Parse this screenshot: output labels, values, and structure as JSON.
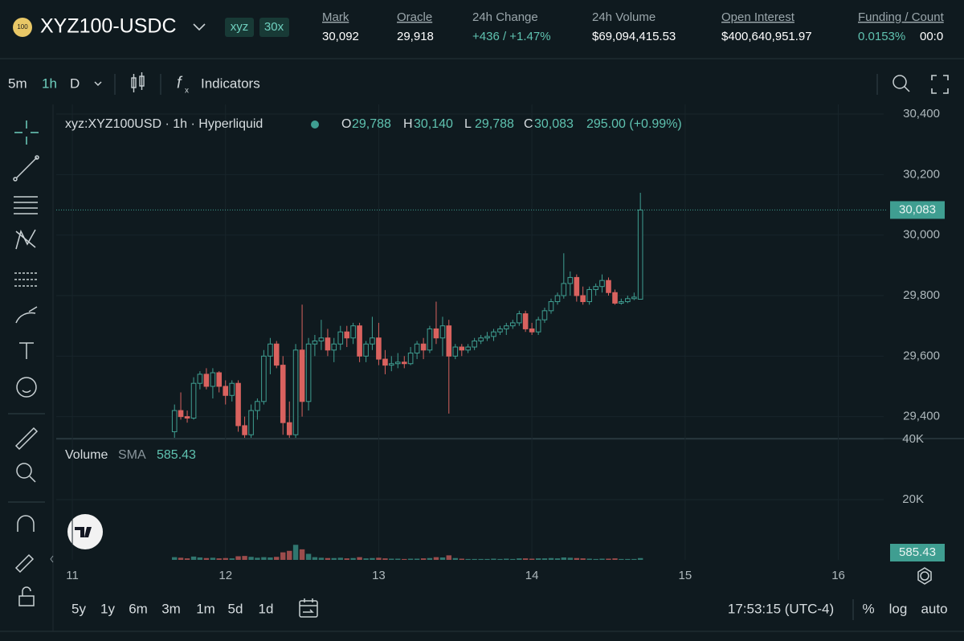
{
  "header": {
    "coin_icon": "100",
    "symbol": "XYZ100-USDC",
    "badges": [
      "xyz",
      "30x"
    ],
    "stats": [
      {
        "label": "Mark",
        "value": "30,092"
      },
      {
        "label": "Oracle",
        "value": "29,918"
      },
      {
        "label": "24h Change",
        "value": "+436 / +1.47%"
      },
      {
        "label": "24h Volume",
        "value": "$69,094,415.53"
      },
      {
        "label": "Open Interest",
        "value": "$400,640,951.97"
      },
      {
        "label": "Funding / Count",
        "value": "0.0153%",
        "extra": "00:0"
      }
    ]
  },
  "toolbar": {
    "intervals": [
      "5m",
      "1h",
      "D"
    ],
    "indicators": "Indicators"
  },
  "chart_data": {
    "type": "candlestick",
    "symbol_label": "xyz:XYZ100USD · 1h · Hyperliquid",
    "legend": [
      {
        "key": "O",
        "value": "29,788"
      },
      {
        "key": "H",
        "value": "30,140"
      },
      {
        "key": "L",
        "value": "29,788"
      },
      {
        "key": "C",
        "value": "30,083"
      }
    ],
    "change": "295.00 (+0.99%)",
    "up_color": "#3f9e91",
    "down_color": "#d9625f",
    "x": [
      11.667,
      11.708,
      11.75,
      11.792,
      11.833,
      11.875,
      11.917,
      11.958,
      12,
      12.042,
      12.083,
      12.125,
      12.167,
      12.208,
      12.25,
      12.292,
      12.333,
      12.375,
      12.417,
      12.458,
      12.5,
      12.542,
      12.583,
      12.625,
      12.667,
      12.708,
      12.75,
      12.792,
      12.833,
      12.875,
      12.917,
      12.958,
      13,
      13.042,
      13.083,
      13.125,
      13.167,
      13.208,
      13.25,
      13.292,
      13.333,
      13.375,
      13.417,
      13.458,
      13.5,
      13.542,
      13.583,
      13.625,
      13.667,
      13.708,
      13.75,
      13.792,
      13.833,
      13.875,
      13.917,
      13.958,
      14,
      14.042,
      14.083,
      14.125,
      14.167,
      14.208,
      14.25,
      14.292,
      14.333,
      14.375,
      14.417,
      14.458,
      14.5,
      14.542,
      14.583,
      14.625,
      14.667,
      14.708
    ],
    "open": [
      29350,
      29420,
      29400,
      29395,
      29510,
      29540,
      29500,
      29545,
      29500,
      29470,
      29510,
      29370,
      29340,
      29420,
      29450,
      29600,
      29640,
      29570,
      29380,
      29340,
      29620,
      29450,
      29640,
      29650,
      29660,
      29620,
      29640,
      29680,
      29660,
      29700,
      29600,
      29640,
      29660,
      29590,
      29570,
      29575,
      29580,
      29575,
      29610,
      29640,
      29620,
      29690,
      29660,
      29700,
      29600,
      29630,
      29620,
      29630,
      29650,
      29660,
      29665,
      29680,
      29690,
      29700,
      29710,
      29740,
      29690,
      29680,
      29720,
      29750,
      29780,
      29800,
      29840,
      29860,
      29800,
      29780,
      29820,
      29830,
      29850,
      29810,
      29775,
      29780,
      29790,
      29788
    ],
    "high": [
      29440,
      29480,
      29420,
      29530,
      29550,
      29560,
      29560,
      29550,
      29520,
      29520,
      29520,
      29400,
      29440,
      29460,
      29620,
      29660,
      29650,
      29600,
      29450,
      29640,
      29770,
      29660,
      29670,
      29720,
      29690,
      29660,
      29700,
      29700,
      29710,
      29710,
      29650,
      29730,
      29710,
      29620,
      29600,
      29610,
      29600,
      29630,
      29650,
      29660,
      29700,
      29780,
      29730,
      29720,
      29640,
      29640,
      29640,
      29660,
      29670,
      29680,
      29690,
      29700,
      29710,
      29720,
      29750,
      29750,
      29710,
      29730,
      29760,
      29790,
      29810,
      29940,
      29880,
      29870,
      29830,
      29830,
      29840,
      29870,
      29860,
      29820,
      29790,
      29800,
      29810,
      30140
    ],
    "low": [
      29330,
      29390,
      29380,
      29390,
      29490,
      29490,
      29460,
      29480,
      29440,
      29450,
      29350,
      29330,
      29330,
      29390,
      29440,
      29540,
      29560,
      29340,
      29330,
      29330,
      29400,
      29420,
      29600,
      29620,
      29600,
      29580,
      29620,
      29630,
      29640,
      29580,
      29580,
      29620,
      29570,
      29540,
      29550,
      29560,
      29560,
      29570,
      29590,
      29590,
      29610,
      29640,
      29600,
      29410,
      29590,
      29600,
      29610,
      29620,
      29640,
      29650,
      29650,
      29670,
      29670,
      29690,
      29700,
      29680,
      29670,
      29670,
      29710,
      29740,
      29770,
      29790,
      29800,
      29780,
      29770,
      29770,
      29800,
      29810,
      29800,
      29770,
      29770,
      29775,
      29785,
      29788
    ],
    "close": [
      29420,
      29400,
      29395,
      29510,
      29540,
      29500,
      29545,
      29500,
      29470,
      29510,
      29370,
      29340,
      29420,
      29450,
      29600,
      29640,
      29570,
      29380,
      29340,
      29620,
      29450,
      29640,
      29650,
      29660,
      29620,
      29640,
      29680,
      29660,
      29700,
      29600,
      29640,
      29660,
      29590,
      29570,
      29575,
      29580,
      29575,
      29610,
      29640,
      29620,
      29690,
      29660,
      29700,
      29600,
      29630,
      29620,
      29630,
      29650,
      29660,
      29665,
      29680,
      29690,
      29700,
      29710,
      29740,
      29690,
      29680,
      29720,
      29750,
      29780,
      29800,
      29840,
      29860,
      29800,
      29780,
      29820,
      29830,
      29850,
      29810,
      29775,
      29780,
      29790,
      29795,
      30083
    ],
    "volume": [
      900,
      700,
      500,
      1100,
      800,
      600,
      700,
      500,
      600,
      500,
      1200,
      1300,
      1000,
      700,
      900,
      800,
      1000,
      2500,
      3000,
      5000,
      3500,
      2000,
      900,
      700,
      600,
      600,
      700,
      500,
      600,
      900,
      500,
      600,
      700,
      500,
      400,
      400,
      300,
      400,
      400,
      500,
      600,
      900,
      800,
      1500,
      600,
      400,
      300,
      300,
      300,
      300,
      400,
      300,
      400,
      300,
      500,
      500,
      400,
      500,
      500,
      600,
      500,
      800,
      700,
      600,
      500,
      400,
      300,
      400,
      400,
      500,
      300,
      300,
      300,
      600
    ],
    "xlim": [
      10.895,
      16.296
    ],
    "xticks": [
      11,
      12,
      13,
      14,
      15,
      16
    ],
    "ylim": [
      29330,
      30432
    ],
    "yticks": [
      {
        "value": 29400,
        "label": "29,400"
      },
      {
        "value": 29600,
        "label": "29,600"
      },
      {
        "value": 29800,
        "label": "29,800"
      },
      {
        "value": 30000,
        "label": "30,000"
      },
      {
        "value": 30200,
        "label": "30,200"
      },
      {
        "value": 30400,
        "label": "30,400"
      }
    ],
    "last_label": "30,083",
    "y2lim": [
      0,
      40000
    ],
    "y2ticks": [
      {
        "value": 20000,
        "label": "20K"
      },
      {
        "value": 40000,
        "label": "40K"
      }
    ],
    "volume_title": "Volume",
    "sma_label": "SMA",
    "sma_value": "585.43",
    "grid": true
  },
  "footer": {
    "ranges": [
      "5y",
      "1y",
      "6m",
      "3m",
      "1m",
      "5d",
      "1d"
    ],
    "time": "17:53:15 (UTC-4)",
    "options": [
      "%",
      "log",
      "auto"
    ]
  }
}
